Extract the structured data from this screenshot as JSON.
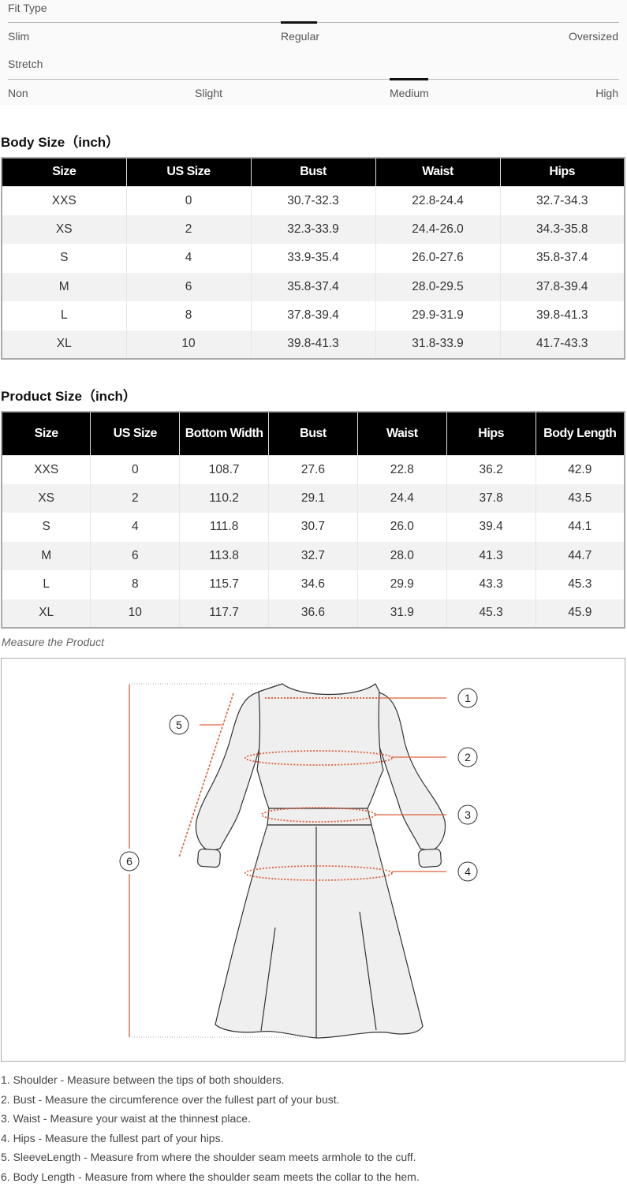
{
  "fit_type": {
    "label": "Fit Type",
    "options": [
      "Slim",
      "Regular",
      "Oversized"
    ],
    "selected": "Regular"
  },
  "stretch": {
    "label": "Stretch",
    "options": [
      "Non",
      "Slight",
      "Medium",
      "High"
    ],
    "selected": "Medium"
  },
  "body_size": {
    "title": "Body Size（inch）",
    "headers": [
      "Size",
      "US Size",
      "Bust",
      "Waist",
      "Hips"
    ],
    "rows": [
      [
        "XXS",
        "0",
        "30.7-32.3",
        "22.8-24.4",
        "32.7-34.3"
      ],
      [
        "XS",
        "2",
        "32.3-33.9",
        "24.4-26.0",
        "34.3-35.8"
      ],
      [
        "S",
        "4",
        "33.9-35.4",
        "26.0-27.6",
        "35.8-37.4"
      ],
      [
        "M",
        "6",
        "35.8-37.4",
        "28.0-29.5",
        "37.8-39.4"
      ],
      [
        "L",
        "8",
        "37.8-39.4",
        "29.9-31.9",
        "39.8-41.3"
      ],
      [
        "XL",
        "10",
        "39.8-41.3",
        "31.8-33.9",
        "41.7-43.3"
      ]
    ]
  },
  "product_size": {
    "title": "Product Size（inch）",
    "headers": [
      "Size",
      "US Size",
      "Bottom Width",
      "Bust",
      "Waist",
      "Hips",
      "Body Length"
    ],
    "rows": [
      [
        "XXS",
        "0",
        "108.7",
        "27.6",
        "22.8",
        "36.2",
        "42.9"
      ],
      [
        "XS",
        "2",
        "110.2",
        "29.1",
        "24.4",
        "37.8",
        "43.5"
      ],
      [
        "S",
        "4",
        "111.8",
        "30.7",
        "26.0",
        "39.4",
        "44.1"
      ],
      [
        "M",
        "6",
        "113.8",
        "32.7",
        "28.0",
        "41.3",
        "44.7"
      ],
      [
        "L",
        "8",
        "115.7",
        "34.6",
        "29.9",
        "43.3",
        "45.3"
      ],
      [
        "XL",
        "10",
        "117.7",
        "36.6",
        "31.9",
        "45.3",
        "45.9"
      ]
    ]
  },
  "measure": {
    "caption": "Measure the Product",
    "markers": [
      "1",
      "2",
      "3",
      "4",
      "5",
      "6"
    ],
    "accent": "#e0603c"
  },
  "notes": [
    "1. Shoulder - Measure between the tips of both shoulders.",
    "2. Bust - Measure the circumference over the fullest part of your bust.",
    "3. Waist - Measure your waist at the thinnest place.",
    "4. Hips - Measure the fullest part of your hips.",
    "5. SleeveLength - Measure from where the shoulder seam meets armhole to the cuff.",
    "6. Body Length - Measure from where the shoulder seam meets the collar to the hem."
  ]
}
